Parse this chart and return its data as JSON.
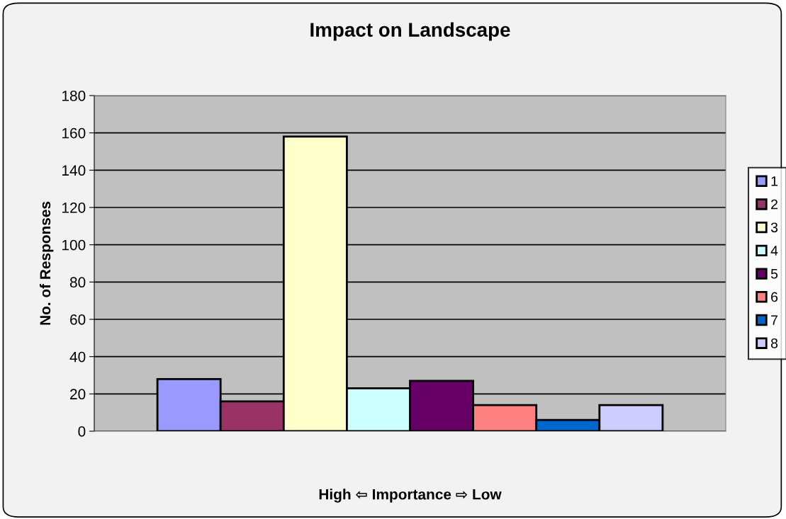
{
  "chart_data": {
    "type": "bar",
    "title": "Impact on Landscape",
    "xlabel": "High ⇦ Importance ⇨ Low",
    "ylabel": "No. of Responses",
    "categories": [
      null
    ],
    "series": [
      {
        "name": "1",
        "color": "#9999ff",
        "values": [
          28
        ]
      },
      {
        "name": "2",
        "color": "#993366",
        "values": [
          16
        ]
      },
      {
        "name": "3",
        "color": "#ffffcc",
        "values": [
          158
        ]
      },
      {
        "name": "4",
        "color": "#ccffff",
        "values": [
          23
        ]
      },
      {
        "name": "5",
        "color": "#660066",
        "values": [
          27
        ]
      },
      {
        "name": "6",
        "color": "#ff8080",
        "values": [
          14
        ]
      },
      {
        "name": "7",
        "color": "#0066cc",
        "values": [
          6
        ]
      },
      {
        "name": "8",
        "color": "#ccccff",
        "values": [
          14
        ]
      }
    ],
    "ylim": [
      0,
      180
    ],
    "yticks": [
      0,
      20,
      40,
      60,
      80,
      100,
      120,
      140,
      160,
      180
    ],
    "grid": "y",
    "legend": "right"
  }
}
